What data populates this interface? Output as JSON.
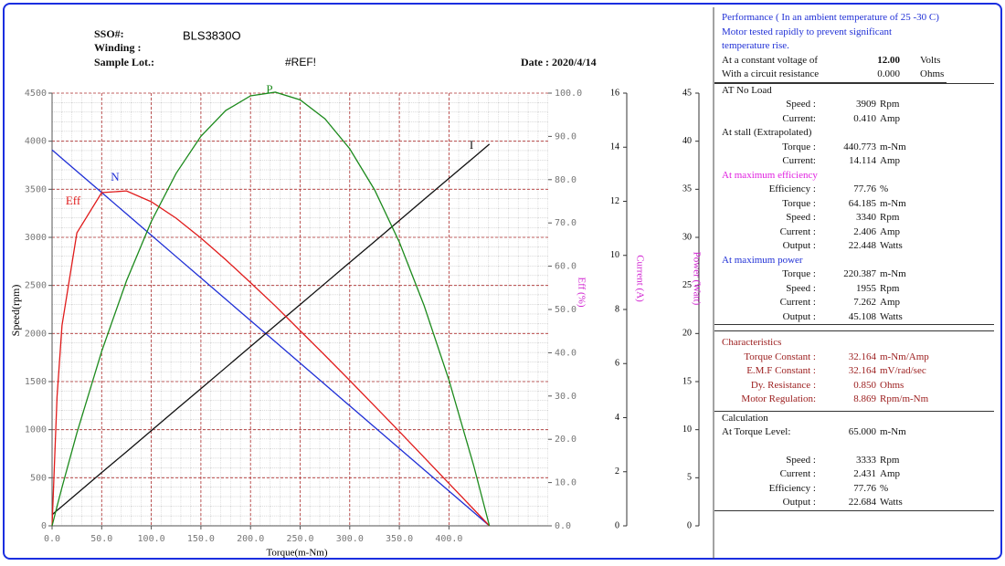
{
  "header": {
    "sso": "SSO#:",
    "winding": "Winding  :",
    "sample_lot": "Sample Lot.:",
    "model": "BLS3830O",
    "ref": "#REF!",
    "date": "Date : 2020/4/14"
  },
  "chart_data": {
    "type": "line",
    "xlabel": "Torque(m-Nm)",
    "ylabel": "Speed(rpm)",
    "y2label": "Eff (%)",
    "y3label": "Current (A)",
    "y4label": "Power (Watt)",
    "x": [
      0,
      5,
      10,
      25,
      50,
      75,
      100,
      125,
      150,
      175,
      200,
      225,
      250,
      275,
      300,
      325,
      350,
      375,
      400,
      425,
      440.773
    ],
    "xlim": [
      0,
      500
    ],
    "xticks": [
      {
        "value": 0,
        "label": "0.0"
      },
      {
        "value": 50,
        "label": "50.0"
      },
      {
        "value": 100,
        "label": "100.0"
      },
      {
        "value": 150,
        "label": "150.0"
      },
      {
        "value": 200,
        "label": "200.0"
      },
      {
        "value": 250,
        "label": "250.0"
      },
      {
        "value": 300,
        "label": "300.0"
      },
      {
        "value": 350,
        "label": "350.0"
      },
      {
        "value": 400,
        "label": "400.0"
      }
    ],
    "ylim": [
      0,
      4500
    ],
    "yticks": [
      0,
      500,
      1000,
      1500,
      2000,
      2500,
      3000,
      3500,
      4000,
      4500
    ],
    "y2lim": [
      0,
      100
    ],
    "y2ticks": [
      {
        "value": 0,
        "label": "0.0"
      },
      {
        "value": 10,
        "label": "10.0"
      },
      {
        "value": 20,
        "label": "20.0"
      },
      {
        "value": 30,
        "label": "30.0"
      },
      {
        "value": 40,
        "label": "40.0"
      },
      {
        "value": 50,
        "label": "50.0"
      },
      {
        "value": 60,
        "label": "60.0"
      },
      {
        "value": 70,
        "label": "70.0"
      },
      {
        "value": 80,
        "label": "80.0"
      },
      {
        "value": 90,
        "label": "90.0"
      },
      {
        "value": 100,
        "label": "100.0"
      }
    ],
    "y3lim": [
      0,
      16
    ],
    "y3ticks": [
      0,
      2,
      4,
      6,
      8,
      10,
      12,
      14,
      16
    ],
    "y4lim": [
      0,
      45
    ],
    "y4ticks": [
      0,
      5,
      10,
      15,
      20,
      25,
      30,
      35,
      40,
      45
    ],
    "grid": true,
    "series": [
      {
        "name": "N",
        "color": "#1f2fd6",
        "axis": "y",
        "values": [
          3909,
          3865,
          3820,
          3687,
          3466,
          3244,
          3022,
          2800,
          2579,
          2357,
          2135,
          1914,
          1692,
          1470,
          1248,
          1027,
          805,
          583,
          362,
          140,
          0
        ]
      },
      {
        "name": "I",
        "color": "#111111",
        "axis": "y3",
        "values": [
          0.41,
          0.57,
          0.72,
          1.19,
          1.97,
          2.74,
          3.52,
          4.3,
          5.07,
          5.85,
          6.63,
          7.41,
          8.18,
          8.96,
          9.74,
          10.51,
          11.29,
          12.07,
          12.85,
          13.62,
          14.114
        ]
      },
      {
        "name": "Eff",
        "color": "#e01b1b",
        "axis": "y2",
        "values": [
          0,
          29.8,
          46.3,
          67.7,
          77,
          77.4,
          74.9,
          71.1,
          66.5,
          61.5,
          56.2,
          50.8,
          45.1,
          39.4,
          33.6,
          27.7,
          21.8,
          15.8,
          9.8,
          3.8,
          0
        ]
      },
      {
        "name": "P",
        "color": "#1c8a1c",
        "axis": "y4",
        "values": [
          0,
          2.02,
          4,
          9.65,
          18.15,
          25.48,
          31.65,
          36.65,
          40.51,
          43.19,
          44.72,
          45.1,
          44.3,
          42.33,
          39.21,
          34.95,
          29.5,
          22.89,
          15.16,
          6.23,
          0
        ]
      }
    ]
  },
  "performance": {
    "intro": [
      "Performance ( In an ambient temperature of 25 -30 C)",
      "Motor tested rapidly to prevent significant",
      "temperature rise."
    ],
    "voltage": [
      "At  a  constant  voltage of",
      "12.00",
      "Volts"
    ],
    "resistance": [
      "With a circuit resistance",
      "0.000",
      "Ohms"
    ],
    "sections": [
      {
        "title": "AT No Load",
        "color": "#111111",
        "rows": [
          [
            "Speed :",
            "3909",
            "Rpm"
          ],
          [
            "Current:",
            "0.410",
            "Amp"
          ]
        ]
      },
      {
        "title": "At stall (Extrapolated)",
        "color": "#111111",
        "rows": [
          [
            "Torque :",
            "440.773",
            "m-Nm"
          ],
          [
            "Current:",
            "14.114",
            "Amp"
          ]
        ]
      },
      {
        "title": "At maximum efficiency",
        "color": "#e020e0",
        "rows": [
          [
            "Efficiency :",
            "77.76",
            "%"
          ],
          [
            "Torque :",
            "64.185",
            "m-Nm"
          ],
          [
            "Speed :",
            "3340",
            "Rpm"
          ],
          [
            "Current :",
            "2.406",
            "Amp"
          ],
          [
            "Output :",
            "22.448",
            "Watts"
          ]
        ]
      },
      {
        "title": "At maximum power",
        "color": "#1f2fd6",
        "rows": [
          [
            "Torque :",
            "220.387",
            "m-Nm"
          ],
          [
            "Speed :",
            "1955",
            "Rpm"
          ],
          [
            "Current :",
            "7.262",
            "Amp"
          ],
          [
            "Output :",
            "45.108",
            "Watts"
          ]
        ]
      },
      {
        "title": "Characteristics",
        "color": "#9b1c1c",
        "rows": [
          [
            "Torque Constant :",
            "32.164",
            "m-Nm/Amp"
          ],
          [
            "E.M.F Constant :",
            "32.164",
            "mV/rad/sec"
          ],
          [
            "Dy. Resistance   :",
            "0.850",
            "Ohms"
          ],
          [
            "Motor Regulation:",
            "8.869",
            "Rpm/m-Nm"
          ]
        ]
      },
      {
        "title": "Calculation",
        "color": "#111111",
        "rows": [
          [
            "At Torque Level:",
            "65.000",
            "m-Nm"
          ],
          [
            "Speed :",
            "3333",
            "Rpm"
          ],
          [
            "Current :",
            "2.431",
            "Amp"
          ],
          [
            "Efficiency :",
            "77.76",
            "%"
          ],
          [
            "Output :",
            "22.684",
            "Watts"
          ]
        ]
      }
    ]
  }
}
